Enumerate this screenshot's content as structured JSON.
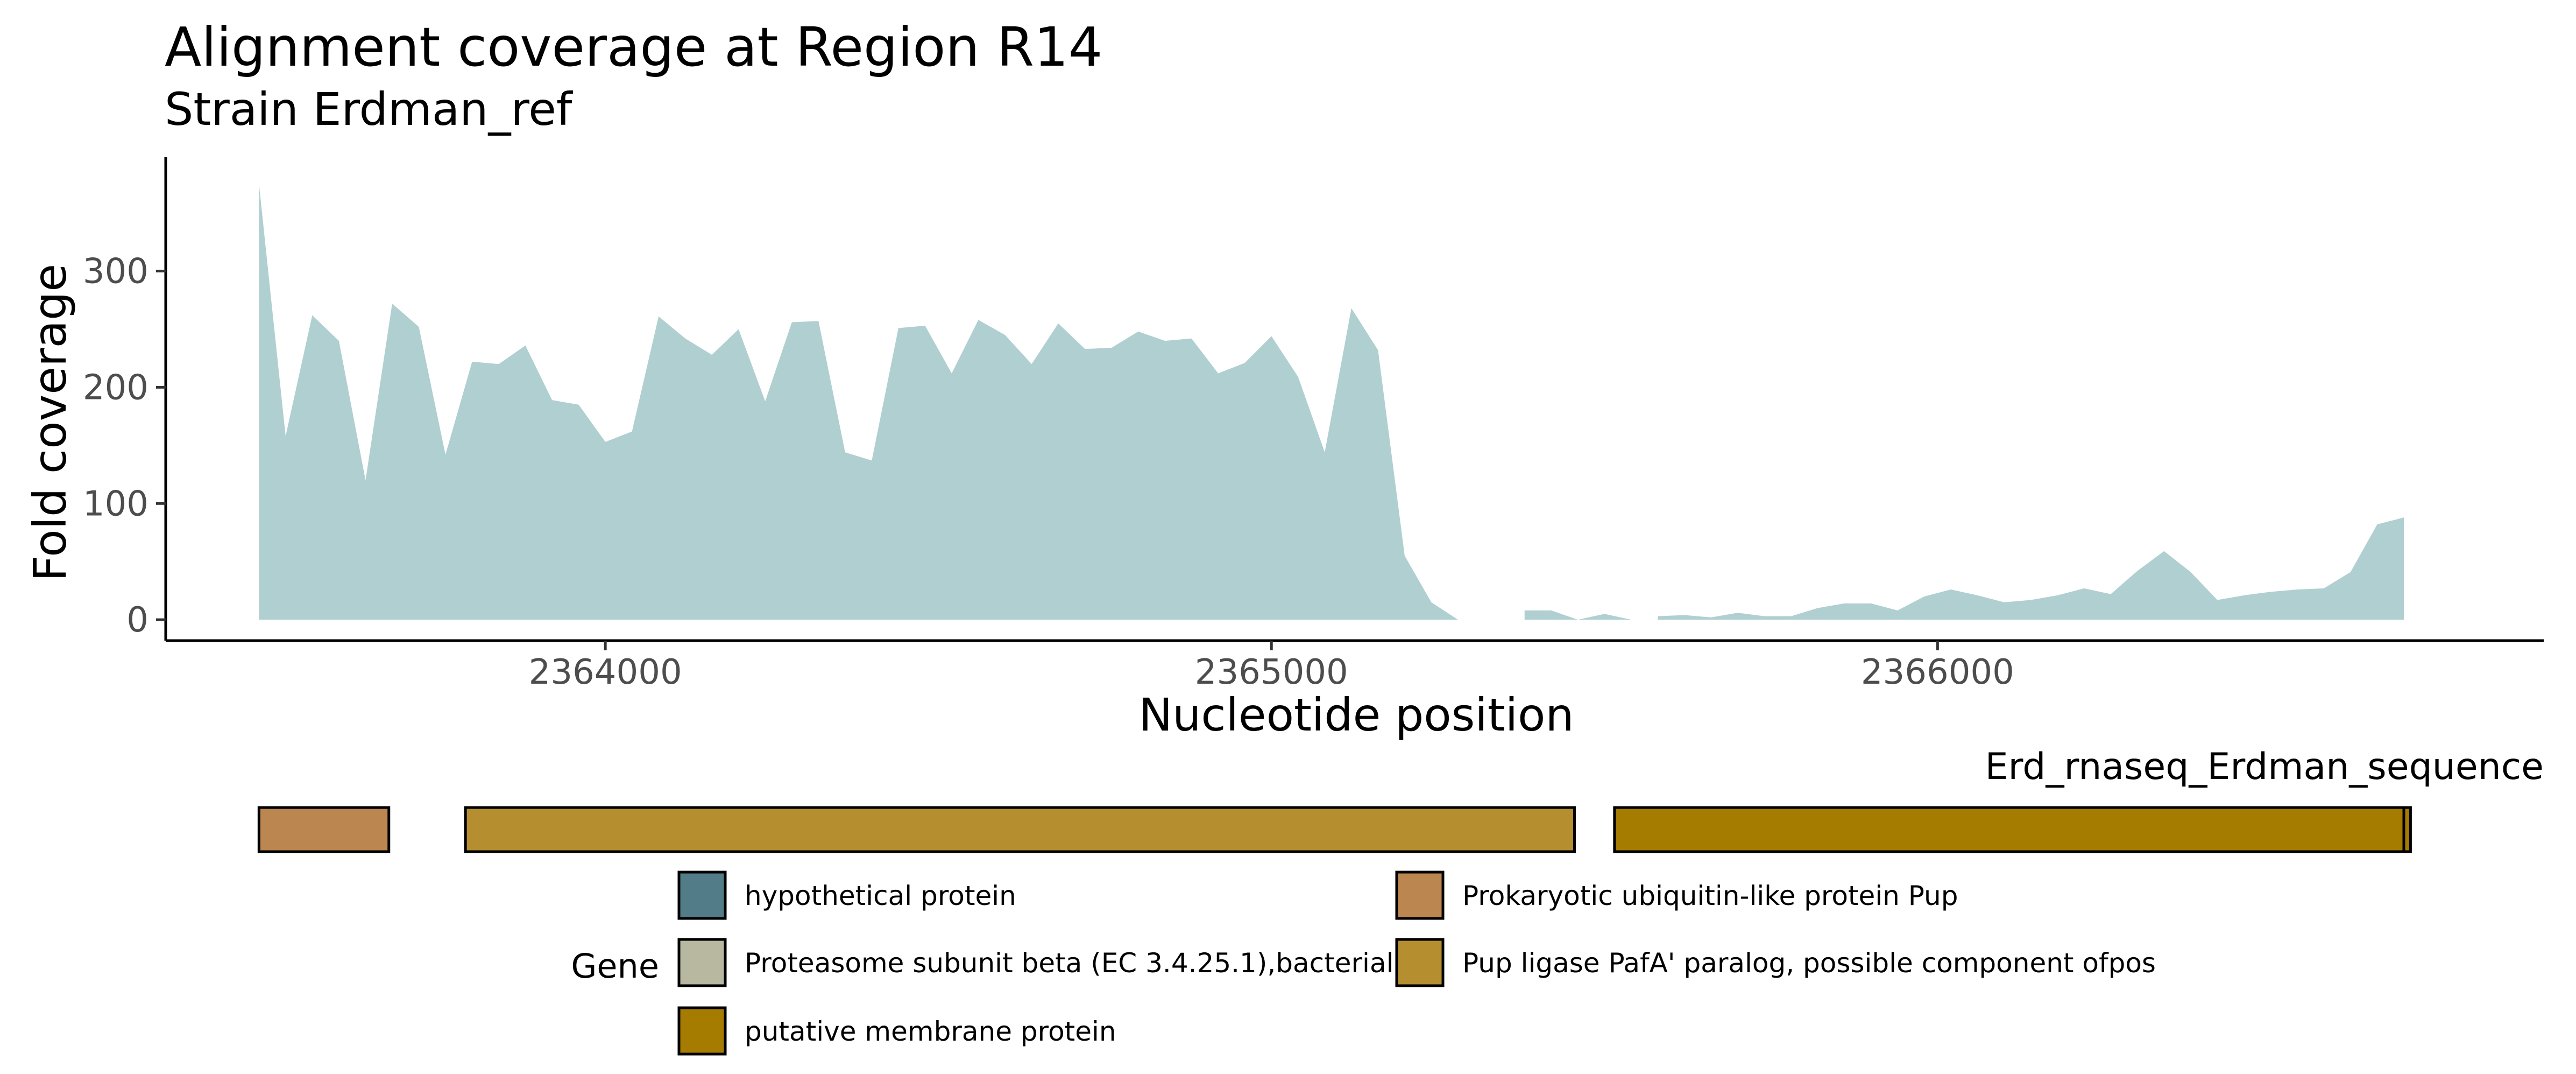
{
  "chart_data": {
    "type": "area",
    "title": "Alignment coverage at Region R14",
    "subtitle": "Strain Erdman_ref",
    "xlabel": "Nucleotide position",
    "ylabel": "Fold coverage",
    "xlim": [
      2363340,
      2366910
    ],
    "ylim": [
      -18,
      398
    ],
    "x_ticks": [
      2364000,
      2365000,
      2366000
    ],
    "x_tick_labels": [
      "2364000",
      "2365000",
      "2366000"
    ],
    "y_ticks": [
      0,
      100,
      200,
      300
    ],
    "y_tick_labels": [
      "0",
      "100",
      "200",
      "300"
    ],
    "grid": false,
    "fill_color": "#b0cfd1",
    "segments": [
      {
        "x": [
          2363480,
          2363520,
          2363560,
          2363600,
          2363640,
          2363680,
          2363720,
          2363760,
          2363800,
          2363840,
          2363880,
          2363920,
          2363960,
          2364000,
          2364040,
          2364080,
          2364120,
          2364160,
          2364200,
          2364240,
          2364280,
          2364320,
          2364360,
          2364400,
          2364440,
          2364480,
          2364520,
          2364560,
          2364600,
          2364640,
          2364680,
          2364720,
          2364760,
          2364800,
          2364840,
          2364880,
          2364920,
          2364960,
          2365000,
          2365040,
          2365080,
          2365120,
          2365160,
          2365200,
          2365240,
          2365280
        ],
        "y": [
          375,
          158,
          262,
          240,
          120,
          272,
          252,
          142,
          222,
          220,
          236,
          189,
          185,
          153,
          162,
          261,
          242,
          228,
          250,
          188,
          256,
          257,
          144,
          137,
          251,
          253,
          212,
          258,
          245,
          220,
          255,
          233,
          234,
          248,
          240,
          242,
          212,
          221,
          244,
          209,
          144,
          268,
          232,
          55,
          15,
          0
        ]
      },
      {
        "x": [
          2365380,
          2365420,
          2365460,
          2365500,
          2365540
        ],
        "y": [
          8,
          8,
          0,
          5,
          0
        ]
      },
      {
        "x": [
          2365580,
          2365620,
          2365660,
          2365700,
          2365740,
          2365780,
          2365820,
          2365860,
          2365900,
          2365940,
          2365980,
          2366020,
          2366060,
          2366100,
          2366140,
          2366180,
          2366220,
          2366260,
          2366300,
          2366340,
          2366380,
          2366420,
          2366460,
          2366500,
          2366540,
          2366580,
          2366620,
          2366660,
          2366700
        ],
        "y": [
          3,
          4,
          2,
          6,
          3,
          3,
          10,
          14,
          14,
          8,
          20,
          26,
          21,
          15,
          17,
          21,
          27,
          22,
          42,
          59,
          41,
          17,
          21,
          24,
          26,
          27,
          41,
          82,
          88
        ]
      }
    ],
    "gene_track": {
      "label": "Erd_rnaseq_Erdman_sequence",
      "genes": [
        {
          "start": 2363480,
          "end": 2363675,
          "product": "Prokaryotic ubiquitin-like protein Pup"
        },
        {
          "start": 2363790,
          "end": 2365455,
          "product": "Pup ligase PafA' paralog, possible component ofpos"
        },
        {
          "start": 2365515,
          "end": 2366700,
          "product": "putative membrane protein"
        },
        {
          "start": 2366700,
          "end": 2366710,
          "product": "putative membrane protein"
        }
      ]
    },
    "legend": {
      "title": "Gene",
      "position": "bottom",
      "entries": [
        {
          "label": "hypothetical protein",
          "color": "#527c87"
        },
        {
          "label": "Proteasome subunit beta (EC 3.4.25.1),bacterial",
          "color": "#b8b8a0"
        },
        {
          "label": "putative membrane protein",
          "color": "#a67c00"
        },
        {
          "label": "Prokaryotic ubiquitin-like protein Pup",
          "color": "#bb864f"
        },
        {
          "label": "Pup ligase PafA' paralog, possible component ofpos",
          "color": "#b58f2f"
        }
      ]
    }
  }
}
